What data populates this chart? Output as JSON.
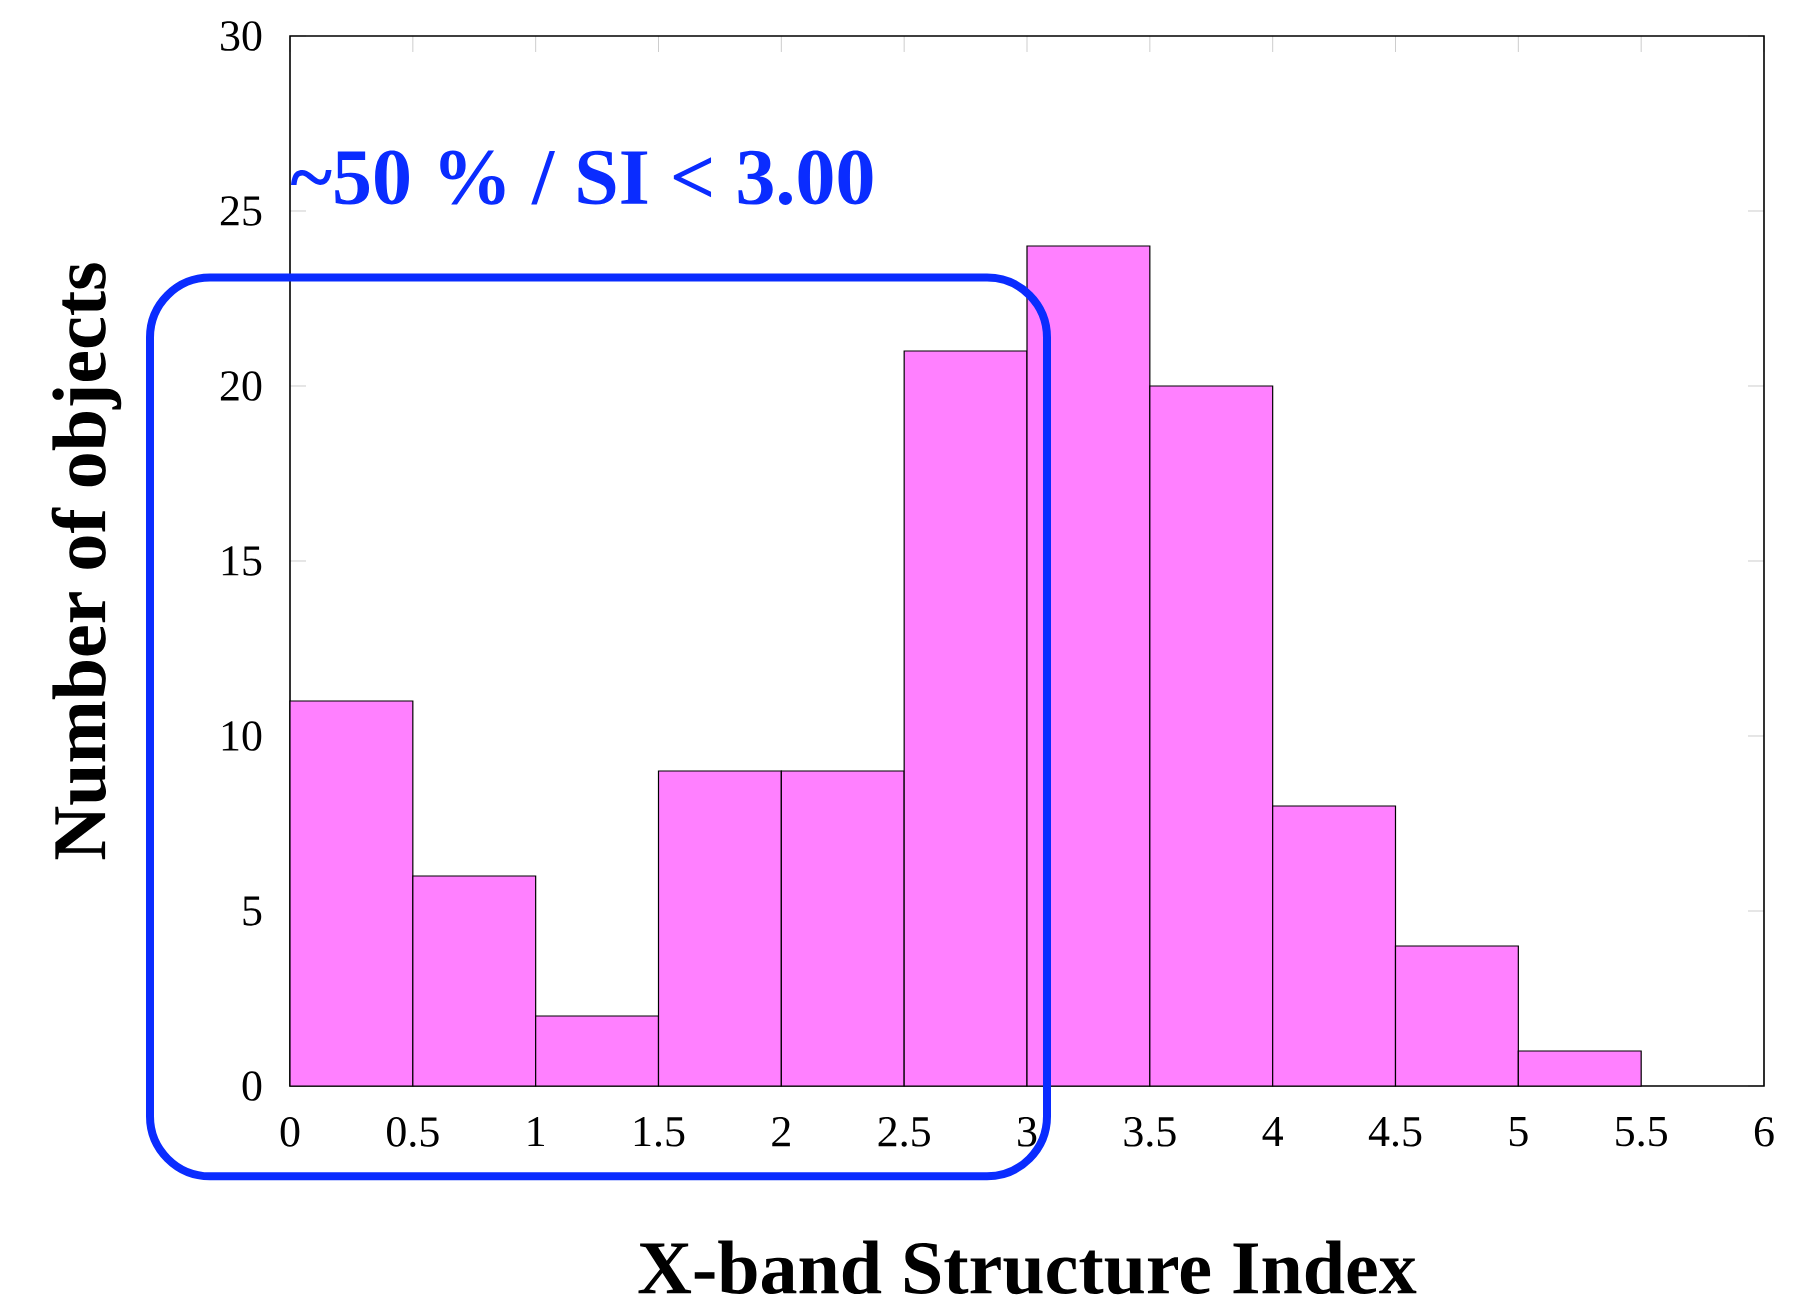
{
  "chart_data": {
    "type": "histogram",
    "xlabel": "X-band Structure Index",
    "ylabel": "Number of objects",
    "bins": [
      0,
      0.5,
      1,
      1.5,
      2,
      2.5,
      3,
      3.5,
      4,
      4.5,
      5,
      5.5
    ],
    "values": [
      11,
      6,
      2,
      9,
      9,
      21,
      24,
      20,
      8,
      4,
      1
    ],
    "color": "#ff80ff",
    "xlim": [
      0,
      6
    ],
    "xticks": [
      0,
      0.5,
      1,
      1.5,
      2,
      2.5,
      3,
      3.5,
      4,
      4.5,
      5,
      5.5,
      6
    ],
    "ylim": [
      0,
      30
    ],
    "yticks": [
      0,
      5,
      10,
      15,
      20,
      25,
      30
    ],
    "annotations": [
      "~50 % / SI < 3.00"
    ]
  }
}
